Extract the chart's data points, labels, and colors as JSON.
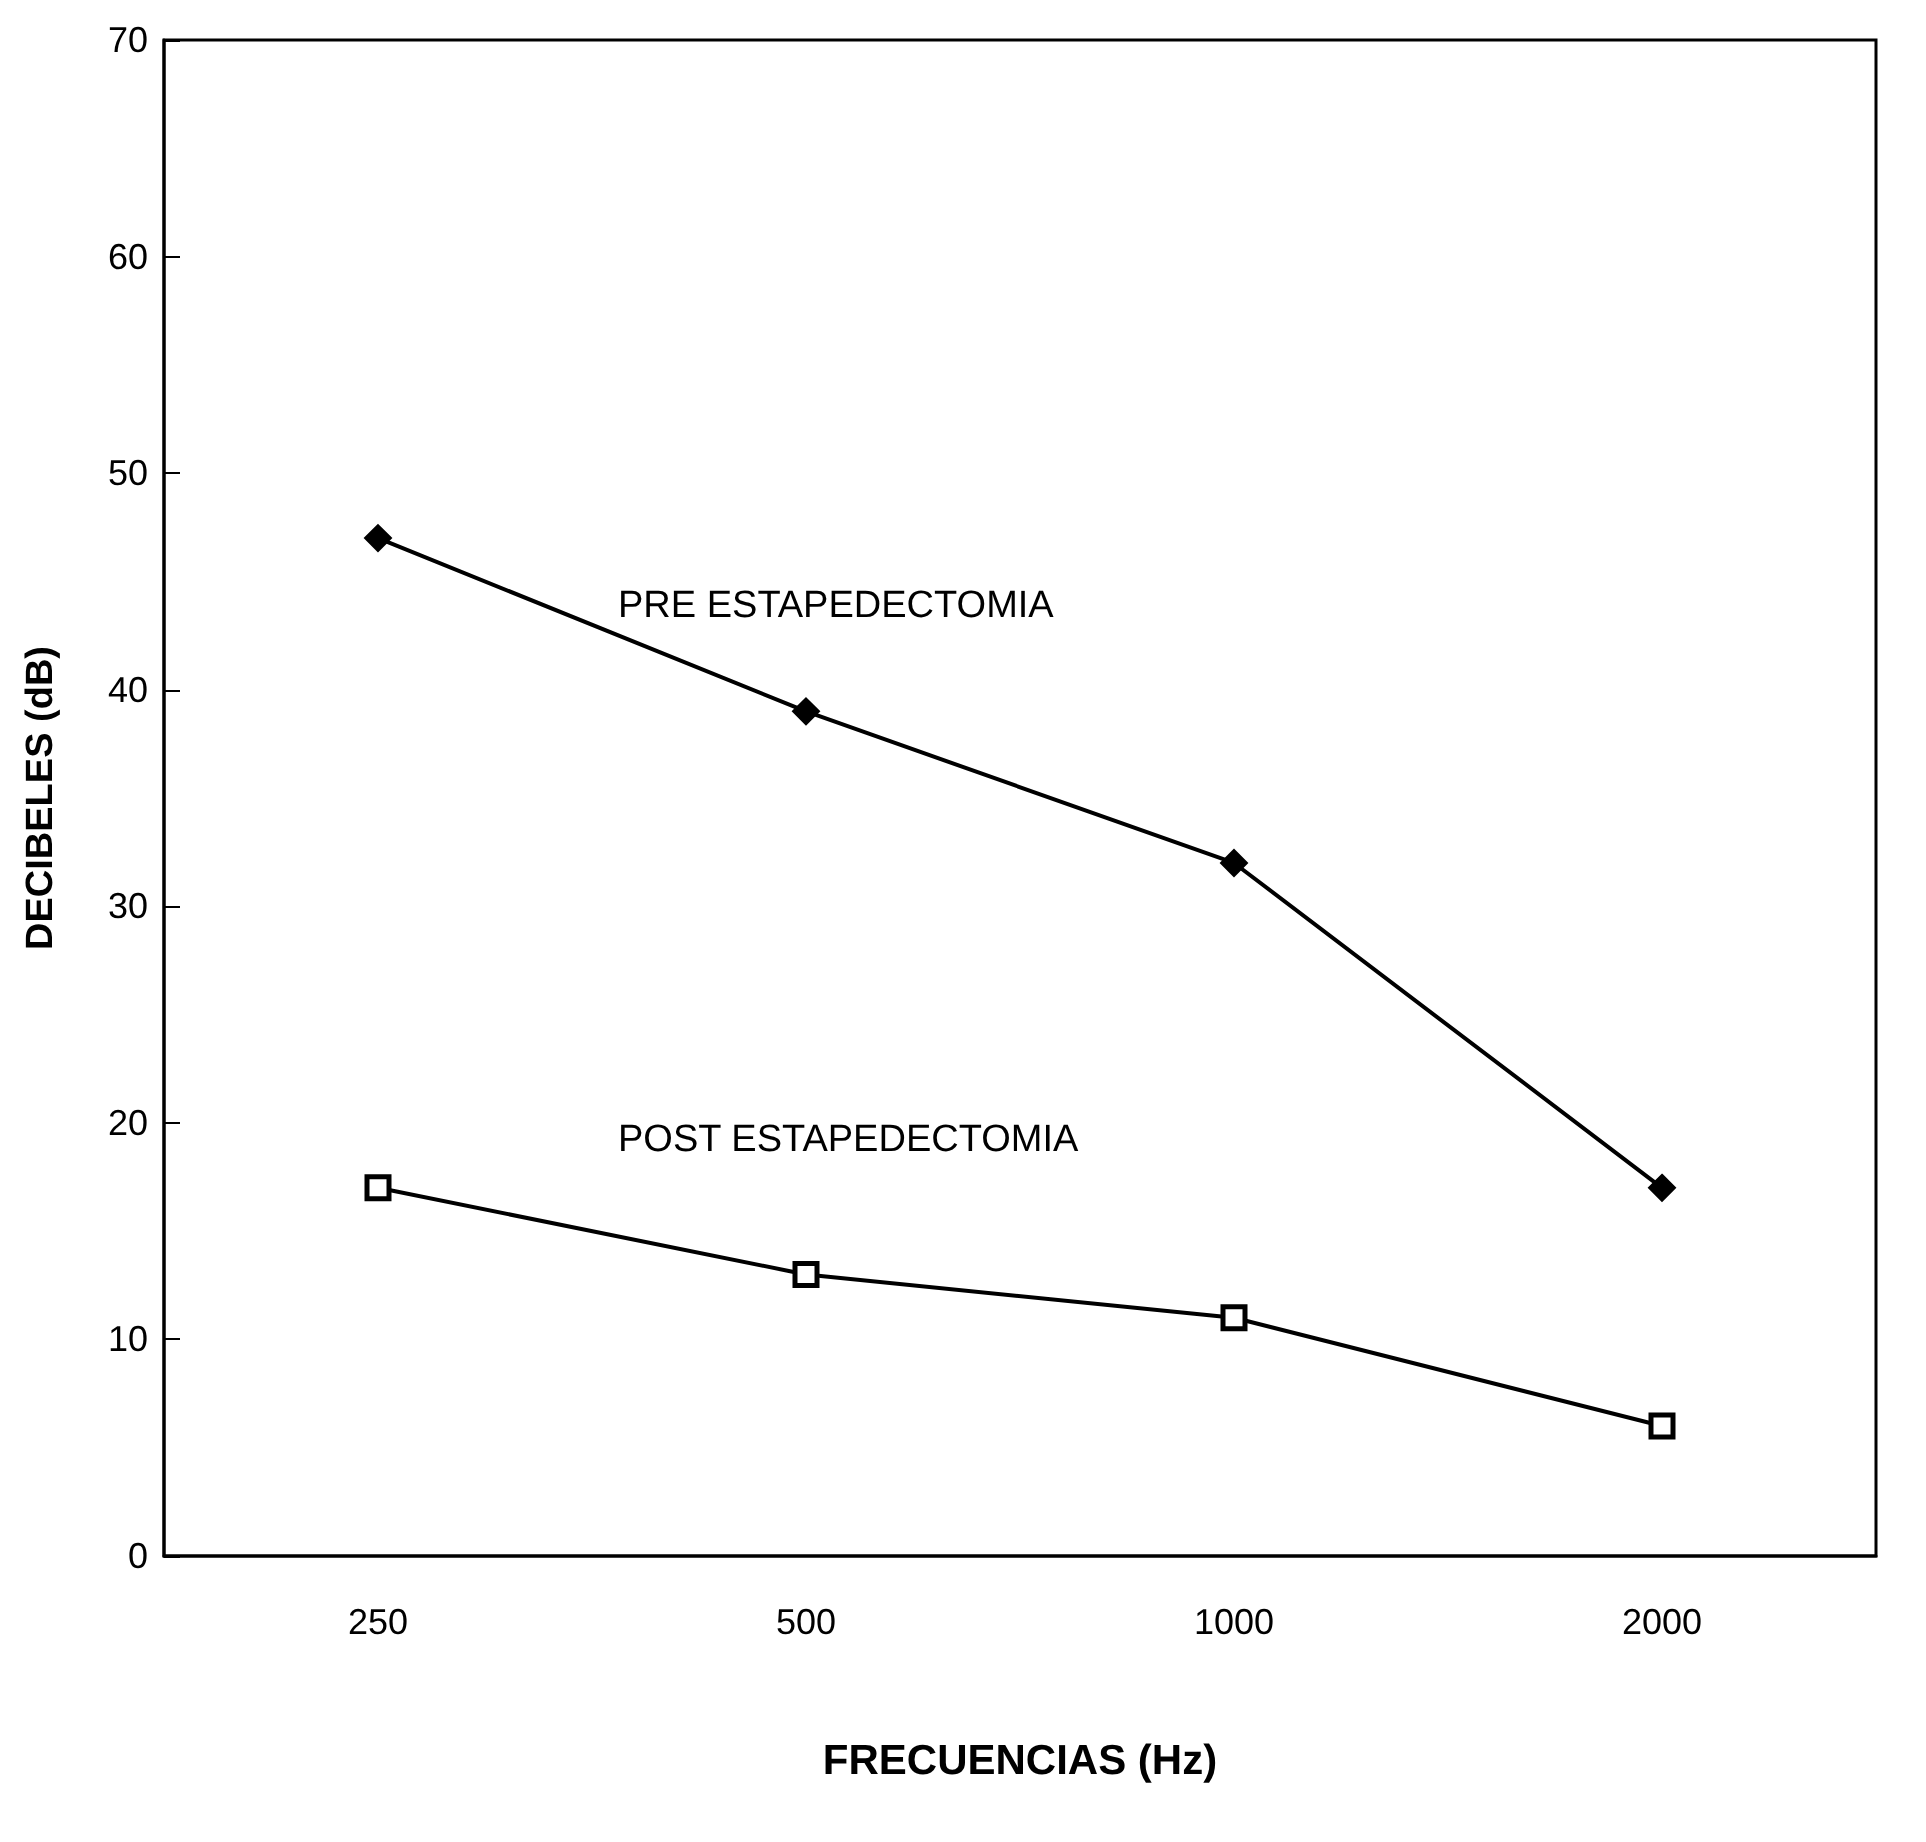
{
  "chart_data": {
    "type": "line",
    "xlabel": "FRECUENCIAS (Hz)",
    "ylabel": "DECIBELES (dB)",
    "categories": [
      "250",
      "500",
      "1000",
      "2000"
    ],
    "series": [
      {
        "name": "PRE ESTAPEDECTOMIA",
        "color": "#000000",
        "marker": "diamond",
        "values": [
          47,
          39,
          32,
          17
        ]
      },
      {
        "name": "POST ESTAPEDECTOMIA",
        "color": "#000000",
        "marker": "square",
        "values": [
          17,
          13,
          11,
          6
        ]
      }
    ],
    "ylim": [
      0,
      70
    ],
    "yticks": [
      0,
      10,
      20,
      30,
      40,
      50,
      60,
      70
    ],
    "grid": false,
    "legend": false,
    "line_style": "solid"
  }
}
